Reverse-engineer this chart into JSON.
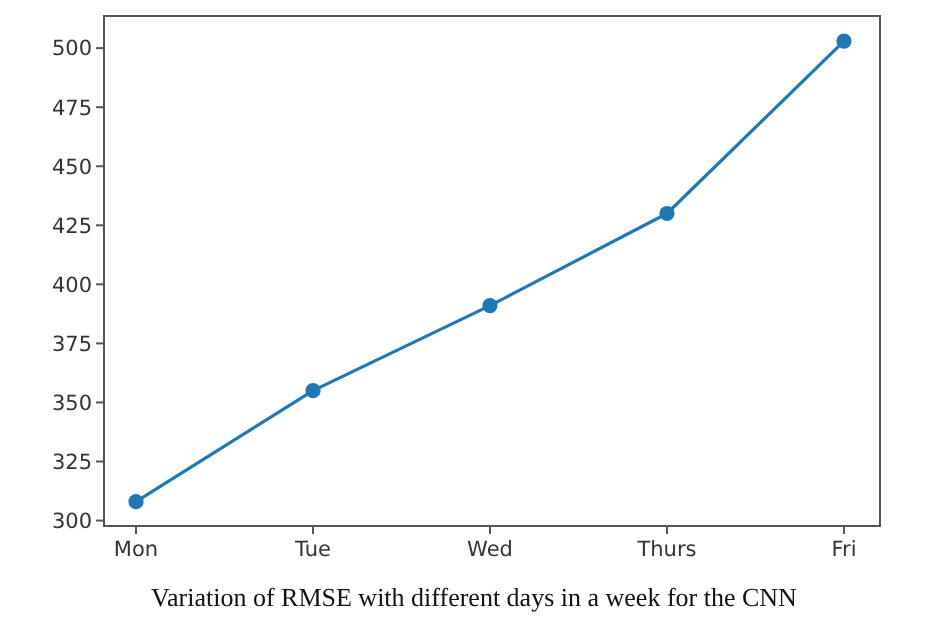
{
  "chart_data": {
    "type": "line",
    "categories": [
      "Mon",
      "Tue",
      "Wed",
      "Thurs",
      "Fri"
    ],
    "series": [
      {
        "color": "#1f77b4",
        "values": [
          308,
          355,
          391,
          430,
          503
        ]
      }
    ],
    "ylim": [
      297.7,
      513.6
    ],
    "yticks": [
      300,
      325,
      350,
      375,
      400,
      425,
      450,
      475,
      500
    ],
    "marker": "circle",
    "line_style": "solid",
    "annotations": [
      "Variation of RMSE with different days in a week for the CNN"
    ]
  }
}
